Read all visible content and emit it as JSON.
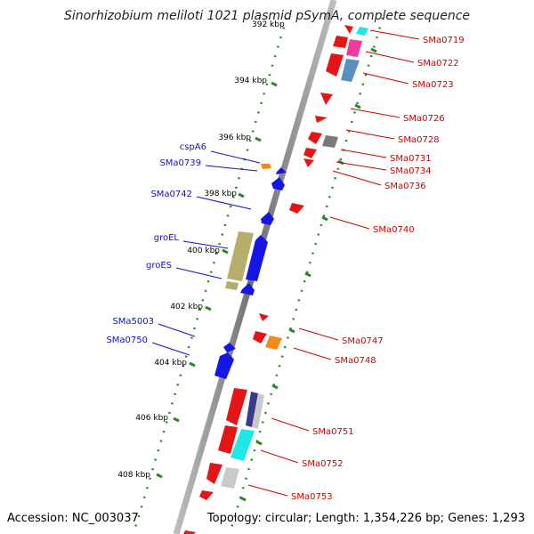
{
  "title": "Sinorhizobium meliloti 1021 plasmid pSymA, complete sequence",
  "accession": "Accession: NC_003037",
  "topology": "Topology: circular; Length: 1,354,226 bp; Genes: 1,293",
  "ticks": [
    "392 kbp",
    "394 kbp",
    "396 kbp",
    "398 kbp",
    "400 kbp",
    "402 kbp",
    "404 kbp",
    "406 kbp",
    "408 kbp"
  ],
  "left_labels": [
    "cspA6",
    "SMa0739",
    "SMa0742",
    "groEL",
    "groES",
    "SMa5003",
    "SMa0750"
  ],
  "right_labels": [
    "SMa0719",
    "SMa0722",
    "SMa0723",
    "SMa0726",
    "SMa0728",
    "SMa0731",
    "SMa0734",
    "SMa0736",
    "SMa0740",
    "SMa0747",
    "SMa0748",
    "SMa0751",
    "SMa0752",
    "SMa0753"
  ],
  "colors": {
    "forward_strand": "#1515e6",
    "reverse_strand": "#e61515",
    "backbone": "#8c8c8c",
    "tick": "#2a8a2a",
    "chaperone": "#b7ad6a",
    "orange": "#f08a1a",
    "magenta": "#f03aa0",
    "steelblue": "#5a8fc0",
    "cyan": "#20e6e6",
    "grey": "#7a7a7a",
    "navy": "#3a3a8a"
  }
}
